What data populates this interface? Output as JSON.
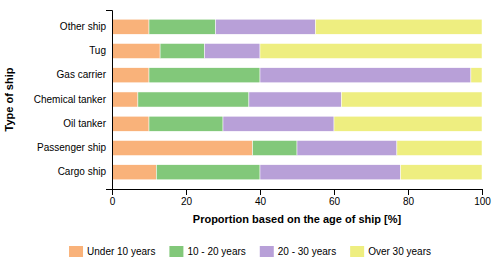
{
  "chart_data": {
    "type": "bar",
    "orientation": "horizontal",
    "stacked": true,
    "categories": [
      "Cargo ship",
      "Passenger ship",
      "Oil tanker",
      "Chemical tanker",
      "Gas carrier",
      "Tug",
      "Other ship"
    ],
    "series": [
      {
        "name": "Under 10 years",
        "color": "#F9B27A",
        "values": [
          12,
          38,
          10,
          7,
          10,
          13,
          10
        ]
      },
      {
        "name": "10 - 20 years",
        "color": "#82C87A",
        "values": [
          28,
          12,
          20,
          30,
          30,
          12,
          18
        ]
      },
      {
        "name": "20 - 30 years",
        "color": "#B8A0D8",
        "values": [
          38,
          27,
          30,
          25,
          57,
          15,
          27
        ]
      },
      {
        "name": "Over 30 years",
        "color": "#EEEE80",
        "values": [
          22,
          23,
          40,
          38,
          3,
          60,
          45
        ]
      }
    ],
    "xlabel": "Proportion based on the age of ship [%]",
    "ylabel": "Type of ship",
    "xlim": [
      0,
      100
    ],
    "xticks": [
      0,
      20,
      40,
      60,
      80,
      100
    ],
    "grid": false,
    "legend": "bottom"
  }
}
